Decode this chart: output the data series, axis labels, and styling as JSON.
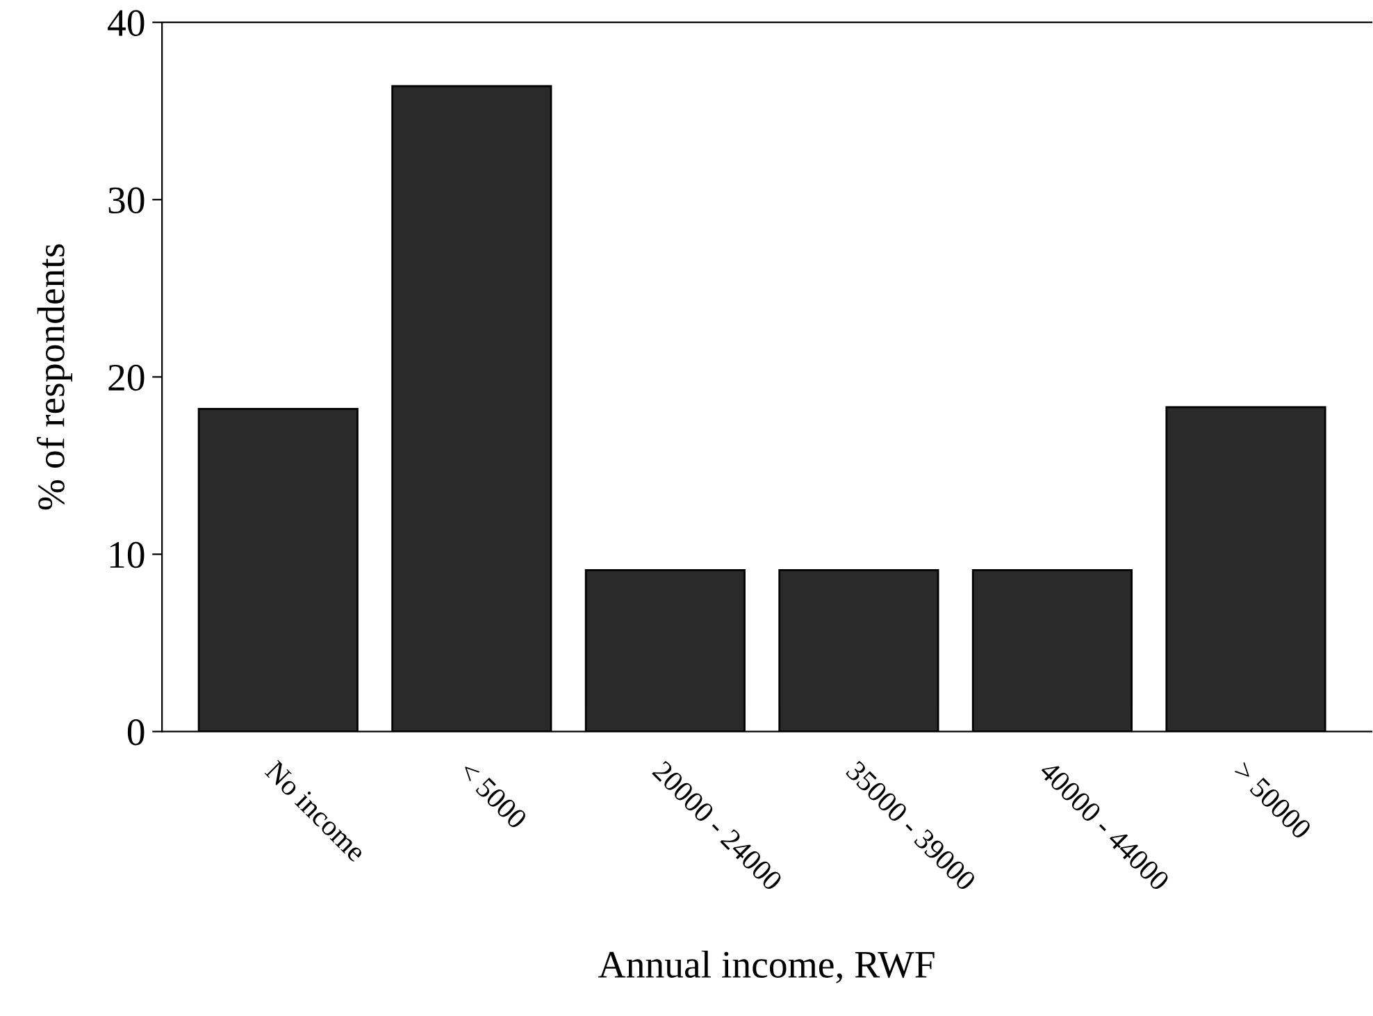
{
  "chart_data": {
    "type": "bar",
    "xlabel": "Annual income, RWF",
    "ylabel": "% of respondents",
    "categories": [
      "No income",
      "< 5000",
      "20000 - 24000",
      "35000 - 39000",
      "40000 - 44000",
      "> 50000"
    ],
    "values": [
      18.2,
      36.4,
      9.1,
      9.1,
      9.1,
      18.3
    ],
    "color": "#2a2a2a",
    "ylim": [
      0,
      40
    ],
    "yticks": [
      0,
      10,
      20,
      30,
      40
    ],
    "grid": false,
    "legend": false
  }
}
